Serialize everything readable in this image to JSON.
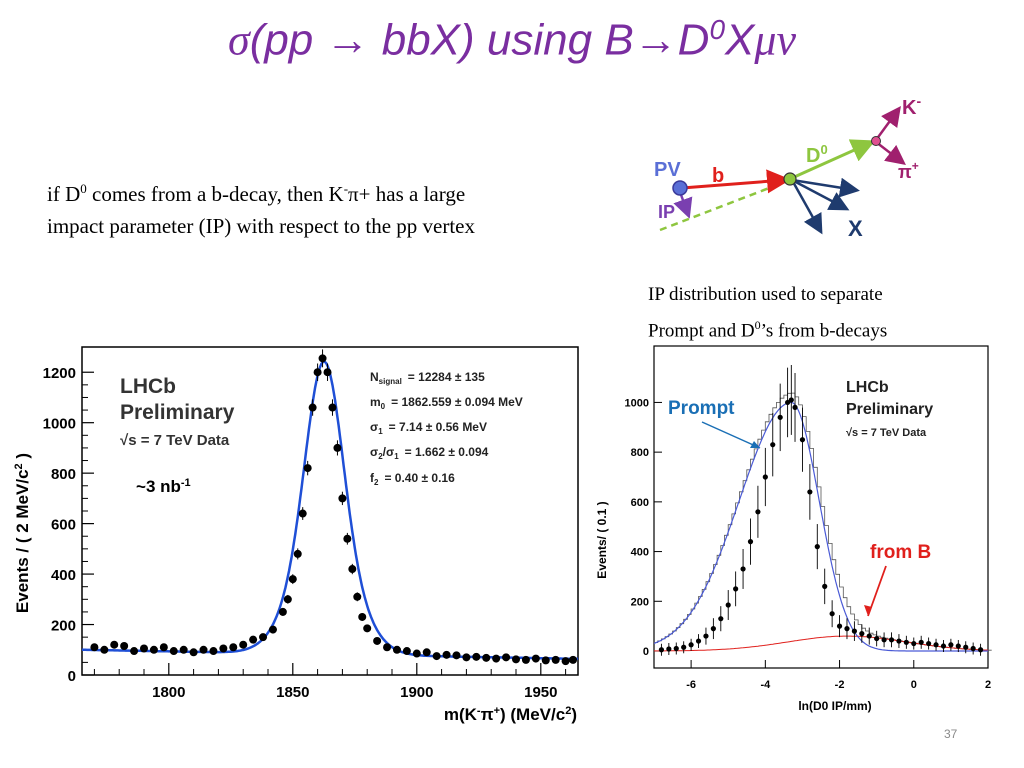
{
  "title": {
    "prefix": "σ",
    "paren_open": "(pp ",
    "arrow1": "→",
    "mid": " bbX) using B",
    "arrow2": "→",
    "d": "D",
    "d_sup": "0",
    "x": "X",
    "munu": "μν"
  },
  "text": {
    "line1_a": "if D",
    "line1_sup": "0",
    "line1_b": " comes from a b-decay, then K",
    "line1_sup2": "-",
    "line1_c": "π+ has a large",
    "line2": "impact parameter (IP) with respect to the pp vertex"
  },
  "caption": {
    "line1": "IP distribution used to separate",
    "line2_a": "Prompt and D",
    "line2_sup": "0",
    "line2_b": "’s from b-decays"
  },
  "diagram": {
    "pv": "PV",
    "b": "b",
    "ip": "IP",
    "d0": "D",
    "d0_sup": "0",
    "k": "K",
    "k_sup": "-",
    "pi": "π",
    "pi_sup": "+",
    "x": "X",
    "colors": {
      "b": "#e0201c",
      "d0": "#8ec63f",
      "x": "#1f3b6e",
      "k": "#a0206e",
      "pv": "#5a6fd6",
      "ip": "#7a3fb0"
    }
  },
  "left_plot": {
    "ylabel_a": "Events / ( 2 MeV/c",
    "ylabel_sup": "2",
    "ylabel_b": " )",
    "xlabel_a": "m(K",
    "xlabel_sup1": "-",
    "xlabel_b": "π",
    "xlabel_sup2": "+",
    "xlabel_c": ") (MeV/c",
    "xlabel_sup3": "2",
    "xlabel_d": ")",
    "yticks": [
      "0",
      "200",
      "400",
      "600",
      "800",
      "1000",
      "1200"
    ],
    "xticks": [
      "1800",
      "1850",
      "1900",
      "1950"
    ],
    "lhcb": "LHCb",
    "prelim": "Preliminary",
    "sqrts": "√s = 7 TeV Data",
    "lumi_a": "~",
    "lumi_b": "3 nb",
    "lumi_sup": "-1",
    "params": [
      "N",
      "= 12284 ± 135",
      "m",
      "= 1862.559 ± 0.094 MeV",
      "σ",
      "= 7.14 ± 0.56 MeV",
      "σ",
      "/σ",
      "= 1.662 ± 0.094",
      "f",
      "= 0.40 ± 0.16"
    ],
    "param_sub": [
      "signal",
      "0",
      "1",
      "2",
      "1",
      "2"
    ]
  },
  "right_plot": {
    "ylabel": "Events/ ( 0.1 )",
    "xlabel": "ln(D0 IP/mm)",
    "yticks": [
      "0",
      "200",
      "400",
      "600",
      "800",
      "1000"
    ],
    "xticks": [
      "-6",
      "-4",
      "-2",
      "0",
      "2"
    ],
    "lhcb": "LHCb",
    "prelim": "Preliminary",
    "sqrts": "√s = 7 TeV Data",
    "prompt": "Prompt",
    "fromb": "from B",
    "colors": {
      "prompt": "#1a6fb5",
      "fromb": "#e0201c"
    }
  },
  "chart_data": [
    {
      "type": "scatter",
      "title": "",
      "xlabel": "m(K⁻π⁺) (MeV/c²)",
      "ylabel": "Events / ( 2 MeV/c² )",
      "xlim": [
        1765,
        1965
      ],
      "ylim": [
        0,
        1300
      ],
      "grid": false,
      "series": [
        {
          "x": [
            1770,
            1774,
            1778,
            1782,
            1786,
            1790,
            1794,
            1798,
            1802,
            1806,
            1810,
            1814,
            1818,
            1822,
            1826,
            1830,
            1834,
            1838,
            1842,
            1846,
            1848,
            1850,
            1852,
            1854,
            1856,
            1858,
            1860,
            1862,
            1864,
            1866,
            1868,
            1870,
            1872,
            1874,
            1876,
            1878,
            1880,
            1884,
            1888,
            1892,
            1896,
            1900,
            1904,
            1908,
            1912,
            1916,
            1920,
            1924,
            1928,
            1932,
            1936,
            1940,
            1944,
            1948,
            1952,
            1956,
            1960,
            1963
          ],
          "y": [
            110,
            100,
            120,
            115,
            95,
            105,
            100,
            110,
            95,
            100,
            90,
            100,
            95,
            105,
            110,
            120,
            140,
            150,
            180,
            250,
            300,
            380,
            480,
            640,
            820,
            1060,
            1200,
            1255,
            1200,
            1060,
            900,
            700,
            540,
            420,
            310,
            230,
            185,
            135,
            110,
            100,
            95,
            85,
            90,
            75,
            80,
            78,
            70,
            72,
            68,
            65,
            70,
            62,
            60,
            65,
            58,
            60,
            55,
            60
          ]
        }
      ]
    },
    {
      "type": "scatter",
      "title": "",
      "xlabel": "ln(D0 IP/mm)",
      "ylabel": "Events/ ( 0.1 )",
      "xlim": [
        -7,
        2
      ],
      "ylim": [
        0,
        1050
      ],
      "grid": false,
      "series": [
        {
          "x": [
            -6.8,
            -6.6,
            -6.4,
            -6.2,
            -6.0,
            -5.8,
            -5.6,
            -5.4,
            -5.2,
            -5.0,
            -4.8,
            -4.6,
            -4.4,
            -4.2,
            -4.0,
            -3.8,
            -3.6,
            -3.4,
            -3.3,
            -3.2,
            -3.0,
            -2.8,
            -2.6,
            -2.4,
            -2.2,
            -2.0,
            -1.8,
            -1.6,
            -1.4,
            -1.2,
            -1.0,
            -0.8,
            -0.6,
            -0.4,
            -0.2,
            0.0,
            0.2,
            0.4,
            0.6,
            0.8,
            1.0,
            1.2,
            1.4,
            1.6,
            1.8
          ],
          "y": [
            5,
            8,
            10,
            15,
            25,
            40,
            60,
            90,
            130,
            185,
            250,
            330,
            440,
            560,
            700,
            830,
            940,
            1000,
            1010,
            980,
            850,
            640,
            420,
            260,
            150,
            100,
            90,
            80,
            70,
            60,
            50,
            45,
            45,
            40,
            35,
            30,
            35,
            30,
            25,
            20,
            25,
            20,
            15,
            10,
            5
          ]
        }
      ]
    }
  ],
  "page_number": "37"
}
